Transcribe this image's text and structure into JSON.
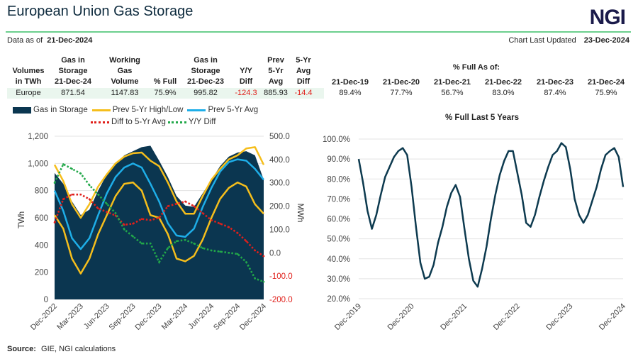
{
  "header": {
    "title": "European Union Gas Storage",
    "logo": "NGI",
    "data_as_of_label": "Data as of",
    "data_as_of": "21-Dec-2024",
    "updated_label": "Chart Last Updated",
    "updated": "23-Dec-2024"
  },
  "table": {
    "headers": [
      [
        "Volumes",
        "in TWh"
      ],
      [
        "Gas in",
        "Storage",
        "21-Dec-24"
      ],
      [
        "Working",
        "Gas",
        "Volume"
      ],
      [
        "% Full"
      ],
      [
        "Gas in",
        "Storage",
        "21-Dec-23"
      ],
      [
        "Y/Y",
        "Diff"
      ],
      [
        "Prev",
        "5-Yr",
        "Avg"
      ],
      [
        "5-Yr",
        "Avg",
        "Diff"
      ]
    ],
    "row": [
      "Europe",
      "871.54",
      "1147.83",
      "75.9%",
      "995.82",
      "-124.3",
      "885.93",
      "-14.4"
    ],
    "full_as_of_title": "% Full As of:",
    "full_dates": [
      "21-Dec-19",
      "21-Dec-20",
      "21-Dec-21",
      "21-Dec-22",
      "21-Dec-23",
      "21-Dec-24"
    ],
    "full_values": [
      "89.4%",
      "77.7%",
      "56.7%",
      "83.0%",
      "87.4%",
      "75.9%"
    ]
  },
  "legend": {
    "gas": "Gas in Storage",
    "highlow": "Prev 5-Yr High/Low",
    "avg": "Prev 5-Yr Avg",
    "diff5": "Diff to 5-Yr Avg",
    "yy": "Y/Y Diff"
  },
  "colors": {
    "gas": "#0b3650",
    "highlow": "#f5be1c",
    "avg": "#1eaee8",
    "diff5": "#e0201b",
    "yy": "#22a84a",
    "line": "#0d3a4f",
    "negative": "#e0201b",
    "rule": "#6ccf8e"
  },
  "footer": {
    "label": "Source:",
    "text": "GIE, NGI calculations"
  },
  "chart_data": [
    {
      "type": "area+line",
      "ylabel": "TWh",
      "y2label": "MWh",
      "ylim": [
        0,
        1200
      ],
      "y2lim": [
        -200,
        500
      ],
      "yticks": [
        "0",
        "200",
        "400",
        "600",
        "800",
        "1,000",
        "1,200"
      ],
      "y2ticks": [
        "-200.0",
        "-100.0",
        "0.0",
        "100.0",
        "200.0",
        "300.0",
        "400.0",
        "500.0"
      ],
      "xticks": [
        "Dec-2022",
        "Mar-2023",
        "Jun-2023",
        "Sep-2023",
        "Dec-2023",
        "Mar-2024",
        "Jun-2024",
        "Sep-2024",
        "Dec-2024"
      ],
      "x_start": "Dec-2022",
      "x_end": "Dec-2024",
      "x_step": "month",
      "grid": true,
      "legend": "top",
      "series": [
        {
          "name": "Gas in Storage",
          "axis": "left",
          "kind": "area",
          "values": [
            930,
            850,
            720,
            620,
            660,
            800,
            920,
            1000,
            1060,
            1090,
            1120,
            1130,
            1020,
            900,
            760,
            690,
            680,
            780,
            880,
            980,
            1050,
            1080,
            1090,
            1060,
            880
          ]
        },
        {
          "name": "Prev 5-Yr High/Low",
          "axis": "left",
          "kind": "line",
          "values": [
            990,
            870,
            700,
            600,
            700,
            830,
            920,
            1000,
            1050,
            1075,
            1080,
            1020,
            980,
            860,
            720,
            630,
            630,
            760,
            880,
            960,
            1030,
            1060,
            1110,
            1120,
            990
          ]
        },
        {
          "name": "Prev 5-Yr High/Low",
          "axis": "left",
          "kind": "line",
          "values": [
            620,
            520,
            300,
            190,
            300,
            480,
            620,
            760,
            850,
            860,
            800,
            620,
            600,
            480,
            300,
            280,
            320,
            440,
            600,
            740,
            820,
            860,
            830,
            700,
            630
          ]
        },
        {
          "name": "Prev 5-Yr Avg",
          "axis": "left",
          "kind": "line",
          "values": [
            800,
            650,
            450,
            370,
            450,
            620,
            780,
            900,
            970,
            1000,
            970,
            850,
            720,
            560,
            470,
            460,
            520,
            680,
            820,
            940,
            1010,
            1030,
            1020,
            960,
            880
          ]
        },
        {
          "name": "Diff to 5-Yr Avg",
          "axis": "right",
          "kind": "dotted",
          "values": [
            130,
            230,
            250,
            250,
            230,
            190,
            175,
            160,
            120,
            125,
            145,
            140,
            150,
            200,
            210,
            220,
            200,
            170,
            140,
            125,
            110,
            85,
            50,
            10,
            -14.4
          ]
        },
        {
          "name": "Y/Y Diff",
          "axis": "right",
          "kind": "dotted",
          "values": [
            300,
            380,
            360,
            340,
            290,
            250,
            210,
            170,
            100,
            70,
            40,
            40,
            -40,
            20,
            50,
            55,
            40,
            20,
            10,
            5,
            0,
            -5,
            -40,
            -110,
            -124.3
          ]
        }
      ]
    },
    {
      "type": "line",
      "title": "% Full Last 5 Years",
      "ylim": [
        20,
        100
      ],
      "yticks": [
        "20.0%",
        "30.0%",
        "40.0%",
        "50.0%",
        "60.0%",
        "70.0%",
        "80.0%",
        "90.0%",
        "100.0%"
      ],
      "xticks": [
        "Dec-2019",
        "Dec-2020",
        "Dec-2021",
        "Dec-2022",
        "Dec-2023",
        "Dec-2024"
      ],
      "x_start": "Dec-2019",
      "x_end": "Dec-2024",
      "x_step": "month",
      "grid": true,
      "values": [
        90,
        78,
        64,
        55,
        62,
        72,
        81,
        86,
        91,
        94,
        95.5,
        92,
        76,
        56,
        38,
        30,
        31,
        37,
        48,
        56,
        66,
        73,
        77,
        71,
        55,
        40,
        29,
        26,
        35,
        46,
        60,
        72,
        82,
        89,
        94,
        94,
        83,
        72,
        58,
        56,
        62,
        71,
        79,
        86,
        92,
        94,
        98,
        96,
        85,
        70,
        62,
        58,
        62,
        69,
        76,
        85,
        92,
        94,
        95.5,
        91,
        76
      ]
    }
  ]
}
